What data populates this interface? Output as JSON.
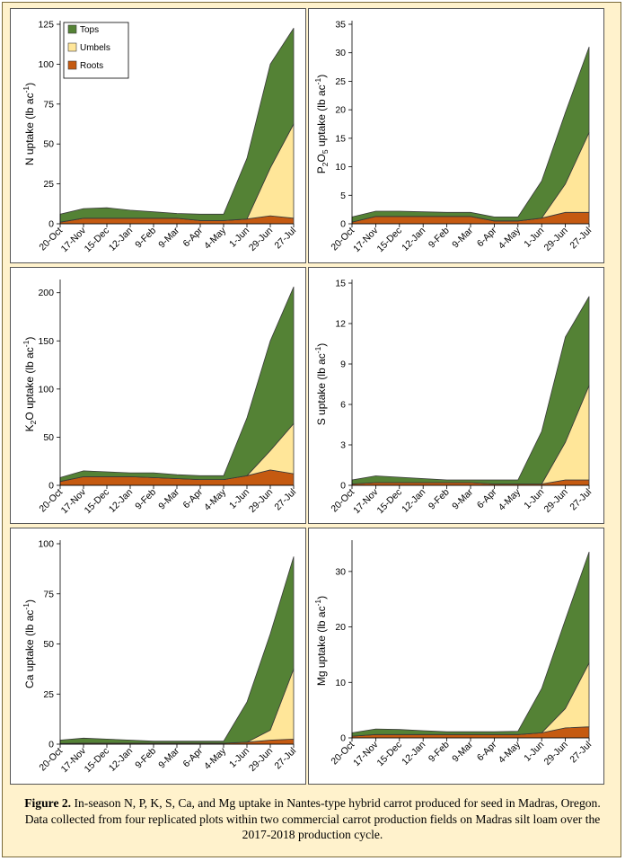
{
  "chart_data": [
    {
      "type": "area",
      "stacked": true,
      "id": "n",
      "ylabel_parts": [
        "N uptake (lb ac",
        "-1",
        ")"
      ],
      "ylim": [
        0,
        125
      ],
      "yticks": [
        0,
        25,
        50,
        75,
        100,
        125
      ],
      "legend": {
        "placement": "top-left",
        "show": true
      },
      "categories": [
        "20-Oct",
        "17-Nov",
        "15-Dec",
        "12-Jan",
        "9-Feb",
        "9-Mar",
        "6-Apr",
        "4-May",
        "1-Jun",
        "29-Jun",
        "27-Jul"
      ],
      "series": [
        {
          "name": "Roots",
          "values": [
            1,
            3.5,
            3.5,
            3.5,
            3.5,
            3.5,
            2,
            2,
            3,
            5,
            3.5
          ]
        },
        {
          "name": "Umbels",
          "values": [
            0,
            0,
            0,
            0,
            0,
            0,
            0,
            0,
            0,
            30,
            59
          ]
        },
        {
          "name": "Tops",
          "values": [
            5,
            6,
            6.5,
            5,
            4,
            3,
            4,
            4,
            38,
            65,
            60
          ]
        }
      ]
    },
    {
      "type": "area",
      "stacked": true,
      "id": "p",
      "ylabel_parts": [
        "P",
        "2",
        "O",
        "5",
        " uptake (lb ac",
        "-1",
        ")"
      ],
      "ylim": [
        0,
        35
      ],
      "yticks": [
        0,
        5,
        10,
        15,
        20,
        25,
        30,
        35
      ],
      "categories": [
        "20-Oct",
        "17-Nov",
        "15-Dec",
        "12-Jan",
        "9-Feb",
        "9-Mar",
        "6-Apr",
        "4-May",
        "1-Jun",
        "29-Jun",
        "27-Jul"
      ],
      "series": [
        {
          "name": "Roots",
          "values": [
            0.3,
            1.3,
            1.3,
            1.3,
            1.3,
            1.3,
            0.5,
            0.5,
            1,
            2,
            2
          ]
        },
        {
          "name": "Umbels",
          "values": [
            0,
            0,
            0,
            0,
            0,
            0,
            0,
            0,
            0,
            5,
            14
          ]
        },
        {
          "name": "Tops",
          "values": [
            0.9,
            0.9,
            0.9,
            0.8,
            0.7,
            0.7,
            0.7,
            0.7,
            6.5,
            12.5,
            15
          ]
        }
      ]
    },
    {
      "type": "area",
      "stacked": true,
      "id": "k",
      "ylabel_parts": [
        "K",
        "2",
        "O uptake (lb ac",
        "-1",
        ")"
      ],
      "ylim": [
        0,
        210
      ],
      "yticks": [
        0,
        50,
        100,
        150,
        200
      ],
      "categories": [
        "20-Oct",
        "17-Nov",
        "15-Dec",
        "12-Jan",
        "9-Feb",
        "9-Mar",
        "6-Apr",
        "4-May",
        "1-Jun",
        "29-Jun",
        "27-Jul"
      ],
      "series": [
        {
          "name": "Roots",
          "values": [
            4,
            9,
            9,
            9,
            8,
            7,
            6,
            6,
            10,
            16,
            12
          ]
        },
        {
          "name": "Umbels",
          "values": [
            0,
            0,
            0,
            0,
            0,
            0,
            0,
            0,
            0,
            20,
            52
          ]
        },
        {
          "name": "Tops",
          "values": [
            4,
            6,
            5,
            4,
            5,
            4,
            4,
            4,
            60,
            114,
            142
          ]
        }
      ]
    },
    {
      "type": "area",
      "stacked": true,
      "id": "s",
      "ylabel_parts": [
        "S uptake (lb ac",
        "-1",
        ")"
      ],
      "ylim": [
        0,
        15
      ],
      "yticks": [
        0,
        3,
        6,
        9,
        12,
        15
      ],
      "categories": [
        "20-Oct",
        "17-Nov",
        "15-Dec",
        "12-Jan",
        "9-Feb",
        "9-Mar",
        "6-Apr",
        "4-May",
        "1-Jun",
        "29-Jun",
        "27-Jul"
      ],
      "series": [
        {
          "name": "Roots",
          "values": [
            0.1,
            0.2,
            0.2,
            0.2,
            0.2,
            0.2,
            0.1,
            0.1,
            0.1,
            0.4,
            0.4
          ]
        },
        {
          "name": "Umbels",
          "values": [
            0,
            0,
            0,
            0,
            0,
            0,
            0,
            0,
            0,
            2.8,
            7
          ]
        },
        {
          "name": "Tops",
          "values": [
            0.3,
            0.5,
            0.4,
            0.3,
            0.2,
            0.2,
            0.3,
            0.3,
            3.9,
            7.8,
            6.6
          ]
        }
      ]
    },
    {
      "type": "area",
      "stacked": true,
      "id": "ca",
      "ylabel_parts": [
        "Ca uptake (lb ac",
        "-1",
        ")"
      ],
      "ylim": [
        0,
        100
      ],
      "yticks": [
        0,
        25,
        50,
        75,
        100
      ],
      "categories": [
        "20-Oct",
        "17-Nov",
        "15-Dec",
        "12-Jan",
        "9-Feb",
        "9-Mar",
        "6-Apr",
        "4-May",
        "1-Jun",
        "29-Jun",
        "27-Jul"
      ],
      "series": [
        {
          "name": "Roots",
          "values": [
            0.3,
            0.5,
            0.5,
            0.5,
            0.5,
            0.5,
            0.5,
            0.5,
            1,
            2,
            2.5
          ]
        },
        {
          "name": "Umbels",
          "values": [
            0,
            0,
            0,
            0,
            0,
            0,
            0,
            0,
            0,
            5,
            35
          ]
        },
        {
          "name": "Tops",
          "values": [
            1.7,
            2.5,
            2,
            1.5,
            1,
            1,
            1,
            1,
            20,
            48,
            56
          ]
        }
      ]
    },
    {
      "type": "area",
      "stacked": true,
      "id": "mg",
      "ylabel_parts": [
        "Mg uptake (lb ac",
        "-1",
        ")"
      ],
      "ylim": [
        0,
        35
      ],
      "yticks": [
        0,
        10,
        20,
        30
      ],
      "categories": [
        "20-Oct",
        "17-Nov",
        "15-Dec",
        "12-Jan",
        "9-Feb",
        "9-Mar",
        "6-Apr",
        "4-May",
        "1-Jun",
        "29-Jun",
        "27-Jul"
      ],
      "series": [
        {
          "name": "Roots",
          "values": [
            0.3,
            0.6,
            0.6,
            0.6,
            0.6,
            0.6,
            0.6,
            0.6,
            0.9,
            1.8,
            2
          ]
        },
        {
          "name": "Umbels",
          "values": [
            0,
            0,
            0,
            0,
            0,
            0,
            0,
            0,
            0,
            3.5,
            11.5
          ]
        },
        {
          "name": "Tops",
          "values": [
            0.6,
            1,
            0.9,
            0.7,
            0.5,
            0.5,
            0.5,
            0.6,
            8,
            16,
            20
          ]
        }
      ]
    }
  ],
  "colors": {
    "Roots": "#c55a11",
    "Umbels": "#ffe699",
    "Tops": "#548235",
    "outline": "#3a3a3a"
  },
  "caption": {
    "label": "Figure 2.",
    "text": " In-season N, P, K, S, Ca, and Mg uptake in Nantes-type hybrid carrot produced for seed in Madras, Oregon. Data collected from four replicated plots within two commercial carrot production fields on Madras silt loam over the 2017-2018 production cycle."
  }
}
